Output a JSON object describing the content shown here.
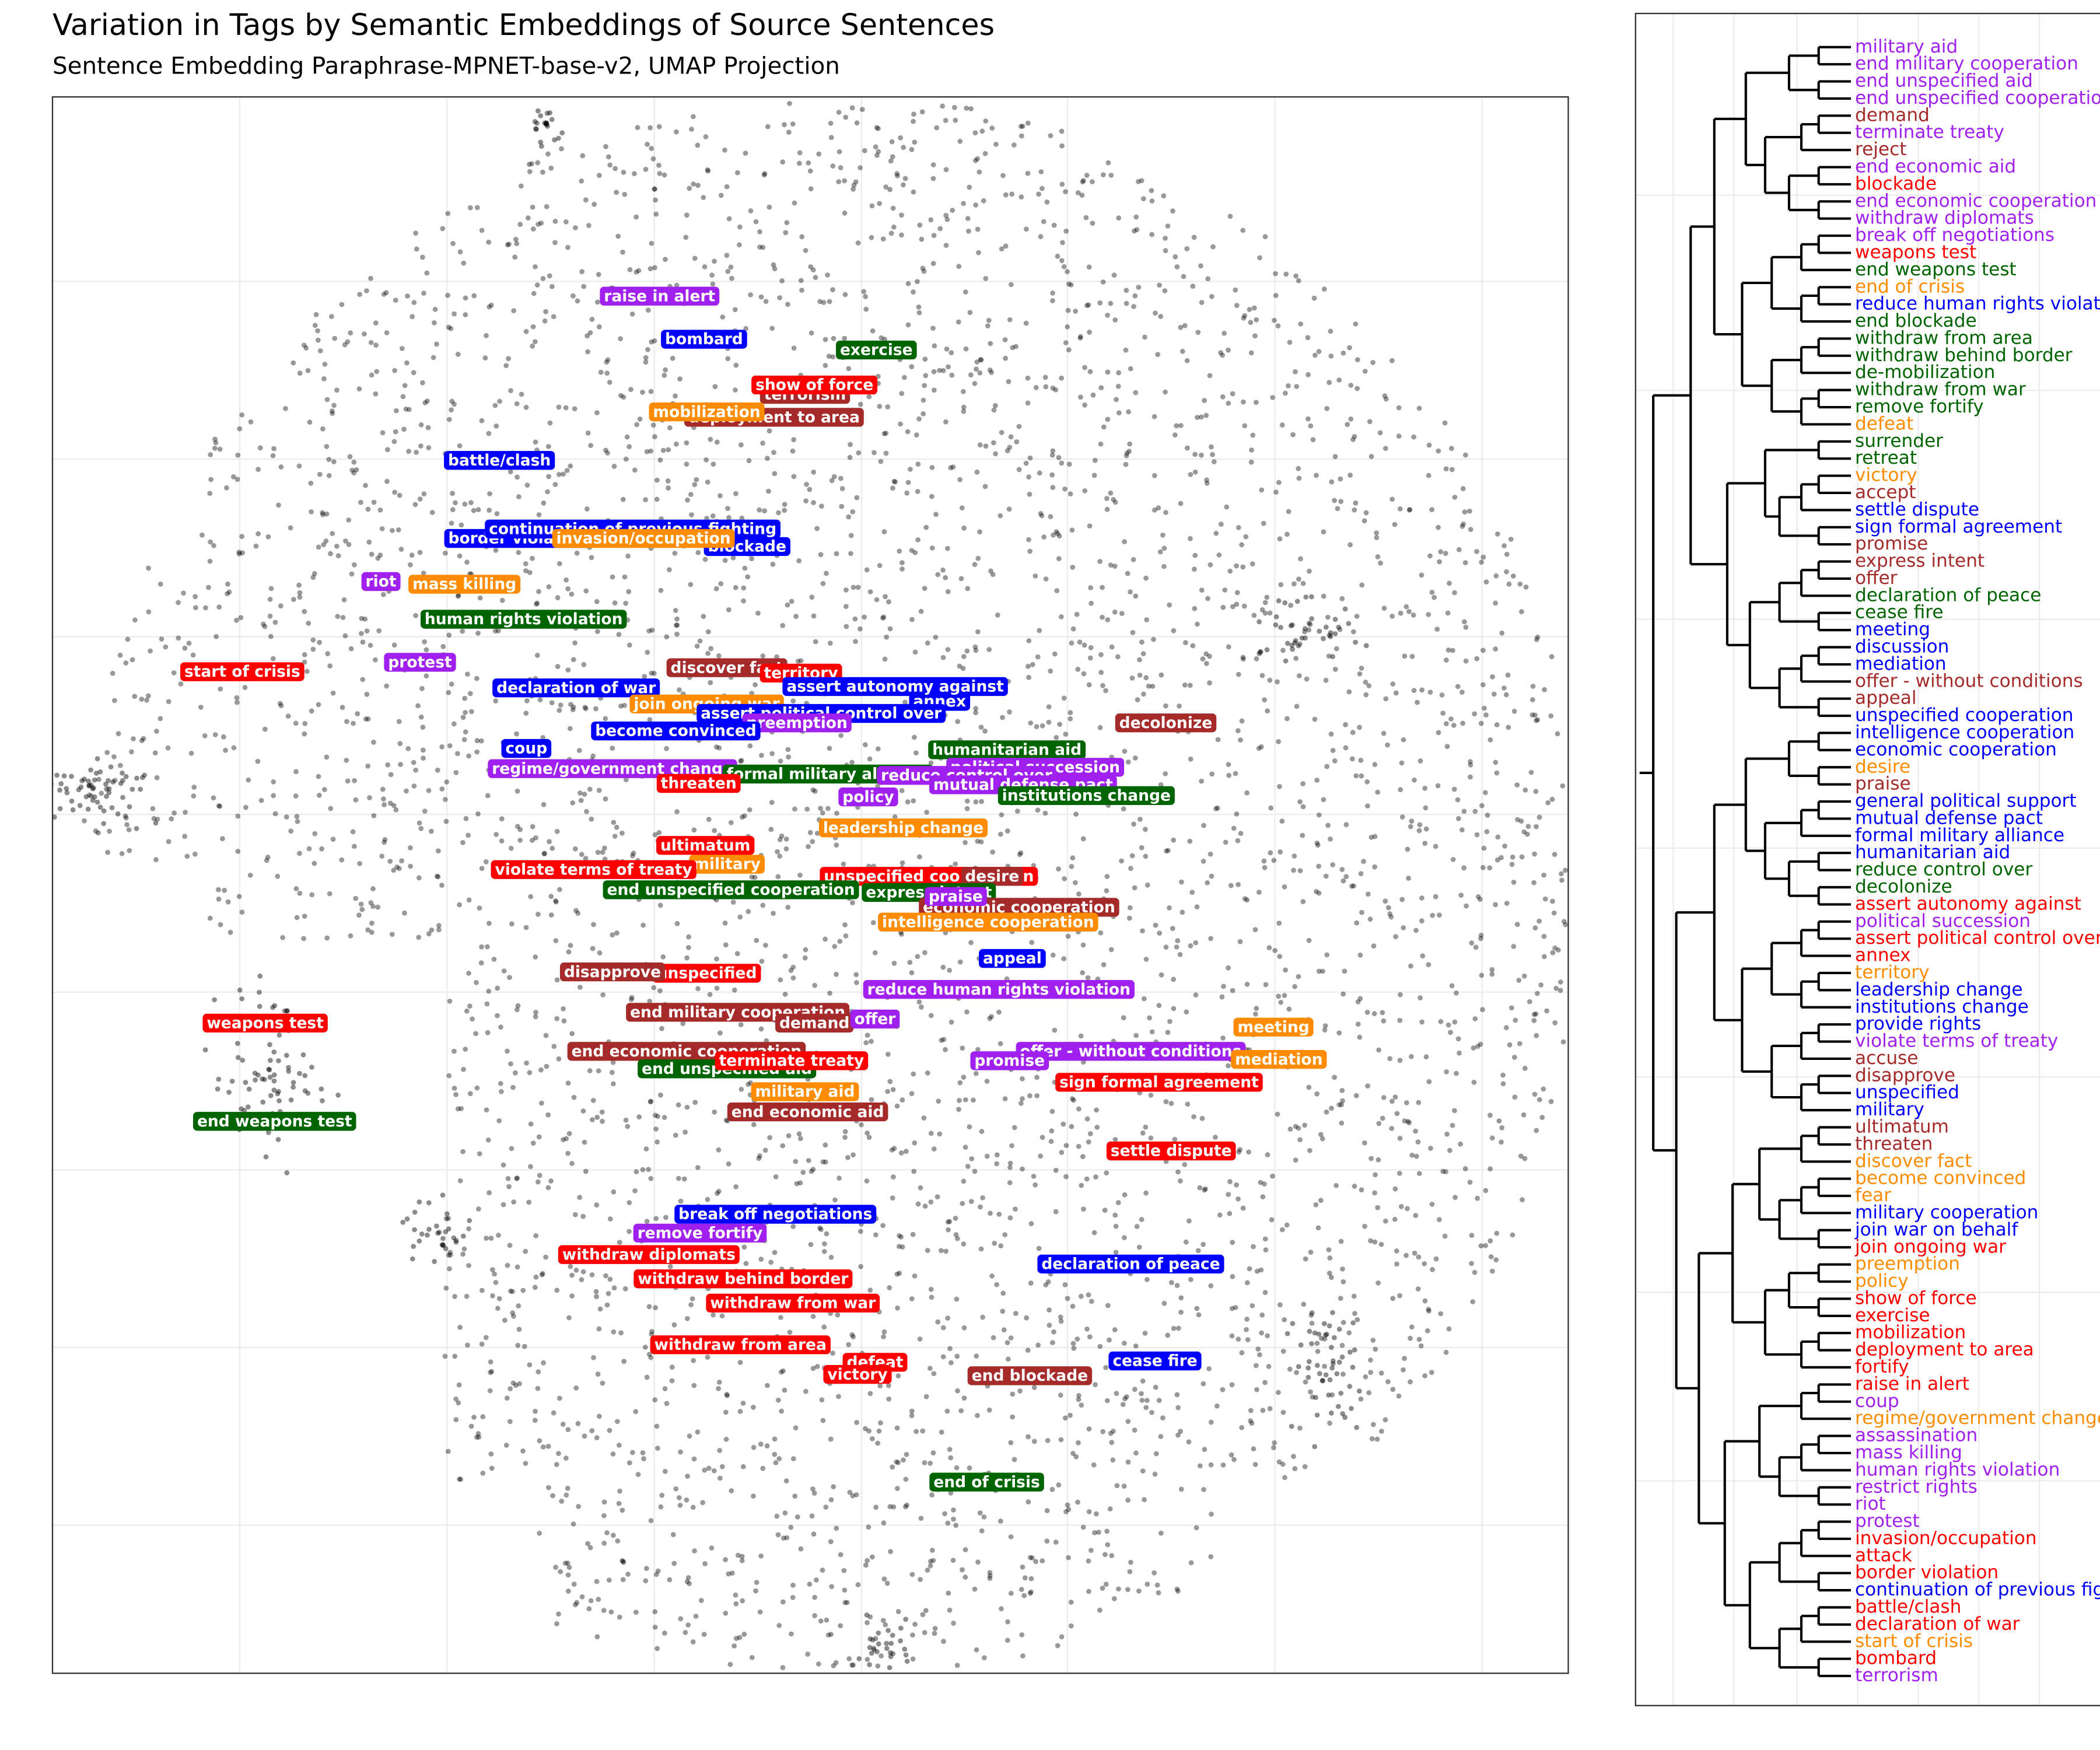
{
  "chart_data": {
    "type": "scatter",
    "title": "Variation in Tags by Semantic Embeddings of Source Sentences",
    "subtitle": "Sentence Embedding Paraphrase-MPNET-base-v2, UMAP Projection",
    "tags": [
      {
        "label": "raise in alert",
        "color": "#a020f0"
      },
      {
        "label": "bombard",
        "color": "#0000ff"
      },
      {
        "label": "exercise",
        "color": "#006400"
      },
      {
        "label": "terrorism",
        "color": "#a52a2a"
      },
      {
        "label": "show of force",
        "color": "#ff0000"
      },
      {
        "label": "deployment to area",
        "color": "#a52a2a"
      },
      {
        "label": "mobilization",
        "color": "#ff8c00"
      },
      {
        "label": "battle/clash",
        "color": "#0000ff"
      },
      {
        "label": "border violation",
        "color": "#0000ff"
      },
      {
        "label": "continuation of previous fighting",
        "color": "#0000ff"
      },
      {
        "label": "blockade",
        "color": "#0000ff"
      },
      {
        "label": "invasion/occupation",
        "color": "#ff8c00"
      },
      {
        "label": "riot",
        "color": "#a020f0"
      },
      {
        "label": "mass killing",
        "color": "#ff8c00"
      },
      {
        "label": "human rights violation",
        "color": "#006400"
      },
      {
        "label": "start of crisis",
        "color": "#ff0000"
      },
      {
        "label": "protest",
        "color": "#a020f0"
      },
      {
        "label": "discover fact",
        "color": "#a52a2a"
      },
      {
        "label": "territory",
        "color": "#ff0000"
      },
      {
        "label": "declaration of war",
        "color": "#0000ff"
      },
      {
        "label": "annex",
        "color": "#0000ff"
      },
      {
        "label": "assert autonomy against",
        "color": "#0000ff"
      },
      {
        "label": "join ongoing war",
        "color": "#ff8c00"
      },
      {
        "label": "assert political control over",
        "color": "#0000ff"
      },
      {
        "label": "preemption",
        "color": "#a020f0"
      },
      {
        "label": "become convinced",
        "color": "#0000ff"
      },
      {
        "label": "decolonize",
        "color": "#a52a2a"
      },
      {
        "label": "coup",
        "color": "#0000ff"
      },
      {
        "label": "humanitarian aid",
        "color": "#006400"
      },
      {
        "label": "regime/government change",
        "color": "#a020f0"
      },
      {
        "label": "formal military alliance",
        "color": "#006400"
      },
      {
        "label": "political succession",
        "color": "#a020f0"
      },
      {
        "label": "reduce control over",
        "color": "#a020f0"
      },
      {
        "label": "threaten",
        "color": "#ff0000"
      },
      {
        "label": "mutual defense pact",
        "color": "#a020f0"
      },
      {
        "label": "institutions change",
        "color": "#006400"
      },
      {
        "label": "policy",
        "color": "#a020f0"
      },
      {
        "label": "leadership change",
        "color": "#ff8c00"
      },
      {
        "label": "military",
        "color": "#ff8c00"
      },
      {
        "label": "ultimatum",
        "color": "#ff0000"
      },
      {
        "label": "violate terms of treaty",
        "color": "#ff0000"
      },
      {
        "label": "unspecified cooperation",
        "color": "#ff0000"
      },
      {
        "label": "desire",
        "color": "#a52a2a"
      },
      {
        "label": "end unspecified cooperation",
        "color": "#006400"
      },
      {
        "label": "express intent",
        "color": "#006400"
      },
      {
        "label": "economic cooperation",
        "color": "#a52a2a"
      },
      {
        "label": "praise",
        "color": "#a020f0"
      },
      {
        "label": "intelligence cooperation",
        "color": "#ff8c00"
      },
      {
        "label": "appeal",
        "color": "#0000ff"
      },
      {
        "label": "unspecified",
        "color": "#ff0000"
      },
      {
        "label": "disapprove",
        "color": "#a52a2a"
      },
      {
        "label": "reduce human rights violation",
        "color": "#a020f0"
      },
      {
        "label": "end military cooperation",
        "color": "#a52a2a"
      },
      {
        "label": "demand",
        "color": "#a52a2a"
      },
      {
        "label": "offer",
        "color": "#a020f0"
      },
      {
        "label": "weapons test",
        "color": "#ff0000"
      },
      {
        "label": "meeting",
        "color": "#ff8c00"
      },
      {
        "label": "end economic cooperation",
        "color": "#a52a2a"
      },
      {
        "label": "offer - without conditions",
        "color": "#a020f0"
      },
      {
        "label": "mediation",
        "color": "#ff8c00"
      },
      {
        "label": "end unspecified aid",
        "color": "#006400"
      },
      {
        "label": "terminate treaty",
        "color": "#ff0000"
      },
      {
        "label": "promise",
        "color": "#a020f0"
      },
      {
        "label": "sign formal agreement",
        "color": "#ff0000"
      },
      {
        "label": "military aid",
        "color": "#ff8c00"
      },
      {
        "label": "end economic aid",
        "color": "#a52a2a"
      },
      {
        "label": "end weapons test",
        "color": "#006400"
      },
      {
        "label": "settle dispute",
        "color": "#ff0000"
      },
      {
        "label": "break off negotiations",
        "color": "#0000ff"
      },
      {
        "label": "remove fortify",
        "color": "#a020f0"
      },
      {
        "label": "withdraw diplomats",
        "color": "#ff0000"
      },
      {
        "label": "declaration of peace",
        "color": "#0000ff"
      },
      {
        "label": "withdraw behind border",
        "color": "#ff0000"
      },
      {
        "label": "withdraw from war",
        "color": "#ff0000"
      },
      {
        "label": "withdraw from area",
        "color": "#ff0000"
      },
      {
        "label": "defeat",
        "color": "#ff0000"
      },
      {
        "label": "cease fire",
        "color": "#0000ff"
      },
      {
        "label": "victory",
        "color": "#ff0000"
      },
      {
        "label": "end blockade",
        "color": "#a52a2a"
      },
      {
        "label": "end of crisis",
        "color": "#006400"
      }
    ],
    "leaves": [
      {
        "label": "military aid",
        "color": "#a020f0"
      },
      {
        "label": "end military cooperation",
        "color": "#a020f0"
      },
      {
        "label": "end unspecified aid",
        "color": "#a020f0"
      },
      {
        "label": "end unspecified cooperation",
        "color": "#a020f0"
      },
      {
        "label": "demand",
        "color": "#a52a2a"
      },
      {
        "label": "terminate treaty",
        "color": "#a020f0"
      },
      {
        "label": "reject",
        "color": "#a52a2a"
      },
      {
        "label": "end economic aid",
        "color": "#a020f0"
      },
      {
        "label": "blockade",
        "color": "#ff0000"
      },
      {
        "label": "end economic cooperation",
        "color": "#a020f0"
      },
      {
        "label": "withdraw diplomats",
        "color": "#a020f0"
      },
      {
        "label": "break off negotiations",
        "color": "#a020f0"
      },
      {
        "label": "weapons test",
        "color": "#ff0000"
      },
      {
        "label": "end weapons test",
        "color": "#006400"
      },
      {
        "label": "end of crisis",
        "color": "#ff8c00"
      },
      {
        "label": "reduce human rights violation",
        "color": "#0000ff"
      },
      {
        "label": "end blockade",
        "color": "#006400"
      },
      {
        "label": "withdraw from area",
        "color": "#006400"
      },
      {
        "label": "withdraw behind border",
        "color": "#006400"
      },
      {
        "label": "de-mobilization",
        "color": "#006400"
      },
      {
        "label": "withdraw from war",
        "color": "#006400"
      },
      {
        "label": "remove fortify",
        "color": "#006400"
      },
      {
        "label": "defeat",
        "color": "#ff8c00"
      },
      {
        "label": "surrender",
        "color": "#006400"
      },
      {
        "label": "retreat",
        "color": "#006400"
      },
      {
        "label": "victory",
        "color": "#ff8c00"
      },
      {
        "label": "accept",
        "color": "#a52a2a"
      },
      {
        "label": "settle dispute",
        "color": "#0000ff"
      },
      {
        "label": "sign formal agreement",
        "color": "#0000ff"
      },
      {
        "label": "promise",
        "color": "#a52a2a"
      },
      {
        "label": "express intent",
        "color": "#a52a2a"
      },
      {
        "label": "offer",
        "color": "#a52a2a"
      },
      {
        "label": "declaration of peace",
        "color": "#006400"
      },
      {
        "label": "cease fire",
        "color": "#006400"
      },
      {
        "label": "meeting",
        "color": "#0000ff"
      },
      {
        "label": "discussion",
        "color": "#0000ff"
      },
      {
        "label": "mediation",
        "color": "#0000ff"
      },
      {
        "label": "offer - without conditions",
        "color": "#a52a2a"
      },
      {
        "label": "appeal",
        "color": "#a52a2a"
      },
      {
        "label": "unspecified cooperation",
        "color": "#0000ff"
      },
      {
        "label": "intelligence cooperation",
        "color": "#0000ff"
      },
      {
        "label": "economic cooperation",
        "color": "#0000ff"
      },
      {
        "label": "desire",
        "color": "#ff8c00"
      },
      {
        "label": "praise",
        "color": "#a52a2a"
      },
      {
        "label": "general political support",
        "color": "#0000ff"
      },
      {
        "label": "mutual defense pact",
        "color": "#0000ff"
      },
      {
        "label": "formal military alliance",
        "color": "#0000ff"
      },
      {
        "label": "humanitarian aid",
        "color": "#0000ff"
      },
      {
        "label": "reduce control over",
        "color": "#006400"
      },
      {
        "label": "decolonize",
        "color": "#006400"
      },
      {
        "label": "assert autonomy against",
        "color": "#ff0000"
      },
      {
        "label": "political succession",
        "color": "#a020f0"
      },
      {
        "label": "assert political control over",
        "color": "#ff0000"
      },
      {
        "label": "annex",
        "color": "#ff0000"
      },
      {
        "label": "territory",
        "color": "#ff8c00"
      },
      {
        "label": "leadership change",
        "color": "#0000ff"
      },
      {
        "label": "institutions change",
        "color": "#0000ff"
      },
      {
        "label": "provide rights",
        "color": "#0000ff"
      },
      {
        "label": "violate terms of treaty",
        "color": "#a020f0"
      },
      {
        "label": "accuse",
        "color": "#a52a2a"
      },
      {
        "label": "disapprove",
        "color": "#a52a2a"
      },
      {
        "label": "unspecified",
        "color": "#0000ff"
      },
      {
        "label": "military",
        "color": "#0000ff"
      },
      {
        "label": "ultimatum",
        "color": "#a52a2a"
      },
      {
        "label": "threaten",
        "color": "#a52a2a"
      },
      {
        "label": "discover fact",
        "color": "#ff8c00"
      },
      {
        "label": "become convinced",
        "color": "#ff8c00"
      },
      {
        "label": "fear",
        "color": "#ff8c00"
      },
      {
        "label": "military cooperation",
        "color": "#0000ff"
      },
      {
        "label": "join war on behalf",
        "color": "#0000ff"
      },
      {
        "label": "join ongoing war",
        "color": "#ff0000"
      },
      {
        "label": "preemption",
        "color": "#ff8c00"
      },
      {
        "label": "policy",
        "color": "#ff8c00"
      },
      {
        "label": "show of force",
        "color": "#ff0000"
      },
      {
        "label": "exercise",
        "color": "#ff0000"
      },
      {
        "label": "mobilization",
        "color": "#ff0000"
      },
      {
        "label": "deployment to area",
        "color": "#ff0000"
      },
      {
        "label": "fortify",
        "color": "#ff0000"
      },
      {
        "label": "raise in alert",
        "color": "#ff0000"
      },
      {
        "label": "coup",
        "color": "#a020f0"
      },
      {
        "label": "regime/government change",
        "color": "#ff8c00"
      },
      {
        "label": "assassination",
        "color": "#a020f0"
      },
      {
        "label": "mass killing",
        "color": "#a020f0"
      },
      {
        "label": "human rights violation",
        "color": "#a020f0"
      },
      {
        "label": "restrict rights",
        "color": "#a020f0"
      },
      {
        "label": "riot",
        "color": "#a020f0"
      },
      {
        "label": "protest",
        "color": "#a020f0"
      },
      {
        "label": "invasion/occupation",
        "color": "#ff0000"
      },
      {
        "label": "attack",
        "color": "#ff0000"
      },
      {
        "label": "border violation",
        "color": "#ff0000"
      },
      {
        "label": "continuation of previous fighting",
        "color": "#0000ff"
      },
      {
        "label": "battle/clash",
        "color": "#ff0000"
      },
      {
        "label": "declaration of war",
        "color": "#ff0000"
      },
      {
        "label": "start of crisis",
        "color": "#ff8c00"
      },
      {
        "label": "bombard",
        "color": "#ff0000"
      },
      {
        "label": "terrorism",
        "color": "#a020f0"
      }
    ]
  }
}
